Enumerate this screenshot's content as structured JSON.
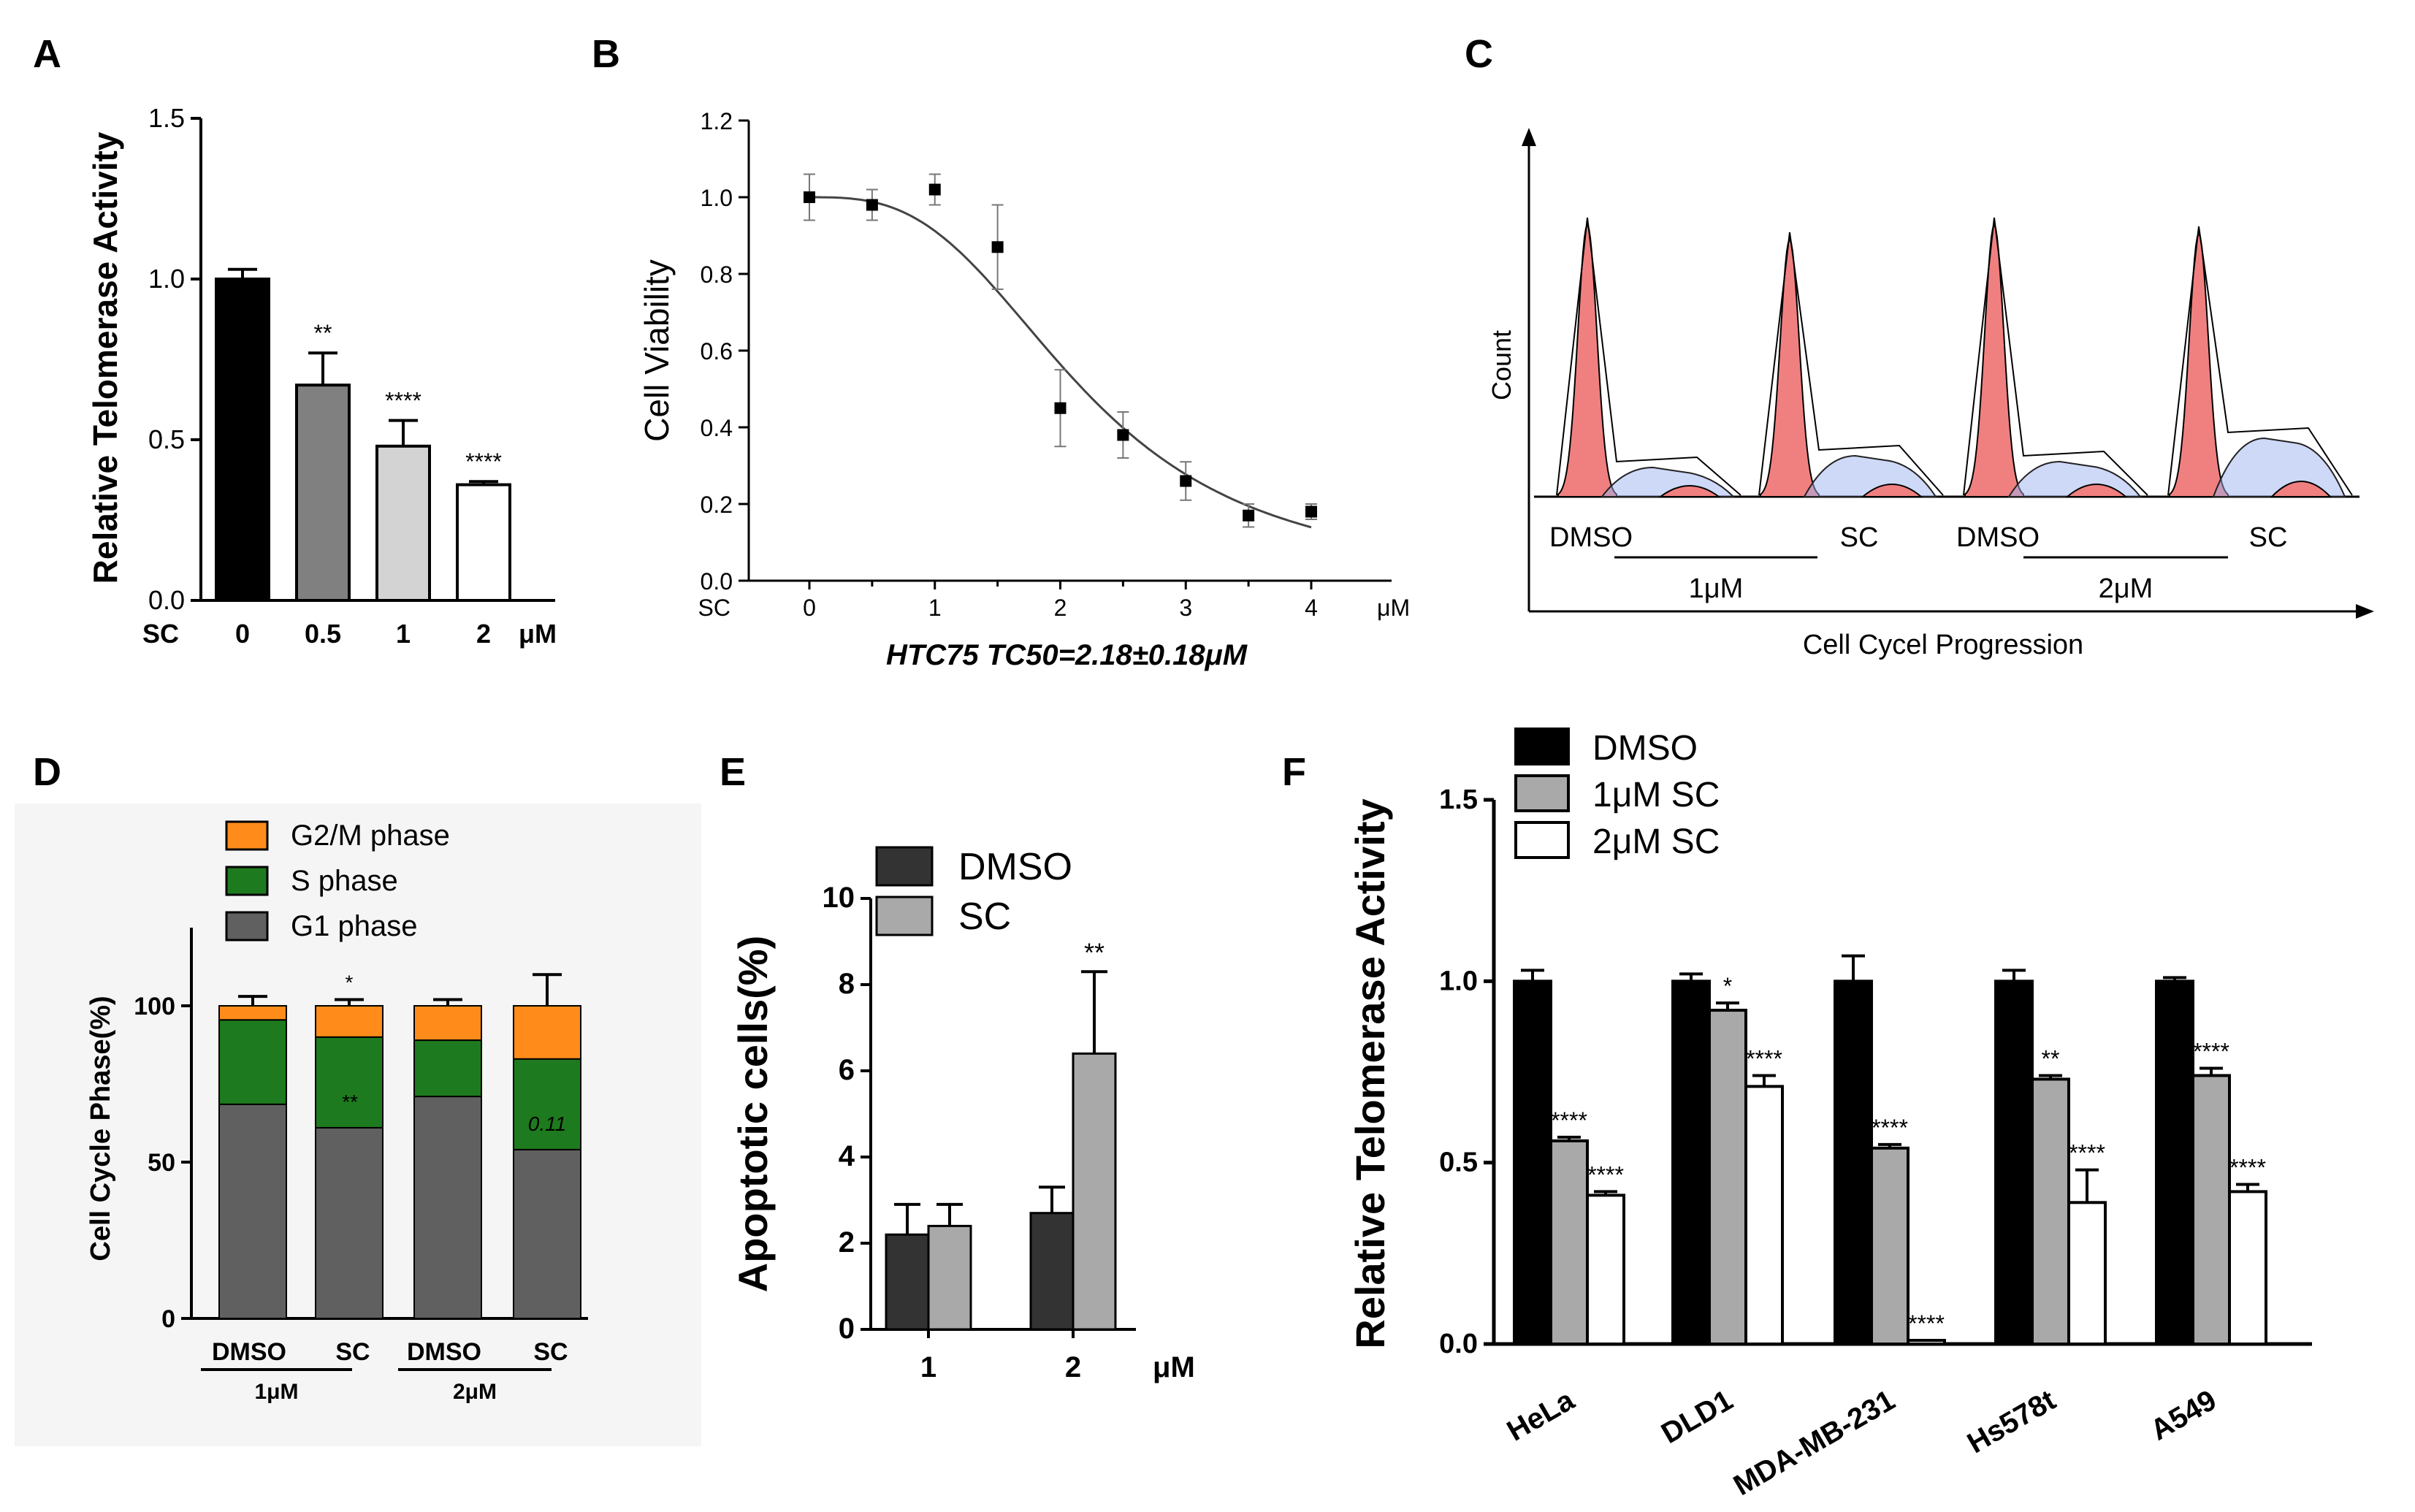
{
  "chart_data": [
    {
      "panel": "A",
      "type": "bar",
      "ylabel": "Relative Telomerase Activity",
      "xprefix": "SC",
      "xunit": "μM",
      "categories": [
        "0",
        "0.5",
        "1",
        "2"
      ],
      "values": [
        1.0,
        0.67,
        0.48,
        0.36
      ],
      "errors": [
        0.03,
        0.1,
        0.08,
        0.01
      ],
      "fills": [
        "#000000",
        "#808080",
        "#d3d3d3",
        "#ffffff"
      ],
      "significance": [
        "",
        "**",
        "****",
        "****"
      ],
      "ylim": [
        0,
        1.5
      ],
      "yticks": [
        "0.0",
        "0.5",
        "1.0",
        "1.5"
      ]
    },
    {
      "panel": "B",
      "type": "scatter",
      "ylabel": "Cell Viability",
      "xprefix": "SC",
      "xunit": "μM",
      "xlabel": "HTC75 TC50=2.18±0.18μM",
      "x": [
        0,
        0.5,
        1,
        1.5,
        2,
        2.5,
        3,
        3.5,
        4
      ],
      "y": [
        1.0,
        0.98,
        1.02,
        0.87,
        0.45,
        0.38,
        0.26,
        0.17,
        0.18
      ],
      "errors": [
        0.06,
        0.04,
        0.04,
        0.11,
        0.1,
        0.06,
        0.05,
        0.03,
        0.02
      ],
      "fit": {
        "top": 1.0,
        "bottom": 0.0,
        "ec50": 2.18,
        "hill": 3.0
      },
      "xlim": [
        0,
        4
      ],
      "ylim": [
        0,
        1.2
      ],
      "xticks": [
        "0",
        "1",
        "2",
        "3",
        "4"
      ],
      "yticks": [
        "0.0",
        "0.2",
        "0.4",
        "0.6",
        "0.8",
        "1.0",
        "1.2"
      ]
    },
    {
      "panel": "C",
      "type": "area",
      "ylabel": "Count",
      "xlabel": "Cell Cycel Progression",
      "histograms": [
        {
          "label": "DMSO",
          "g1_height": 0.93,
          "s_level": 0.1,
          "g2_height": 0.05
        },
        {
          "label": "SC",
          "g1_height": 0.88,
          "s_level": 0.14,
          "g2_height": 0.06
        },
        {
          "label": "DMSO",
          "g1_height": 0.93,
          "s_level": 0.12,
          "g2_height": 0.06
        },
        {
          "label": "SC",
          "g1_height": 0.9,
          "s_level": 0.2,
          "g2_height": 0.08
        }
      ],
      "groups": [
        "1μM",
        "2μM"
      ],
      "colors": {
        "g1": "#f08080",
        "s": "#9db2f0",
        "g2": "#f08080"
      }
    },
    {
      "panel": "D",
      "type": "bar",
      "stacked": true,
      "ylabel": "Cell Cycle Phase(%)",
      "categories": [
        "DMSO",
        "SC",
        "DMSO",
        "SC"
      ],
      "groups": [
        "1μM",
        "2μM"
      ],
      "series": [
        {
          "name": "G1 phase",
          "color": "#606060",
          "values": [
            68.5,
            61,
            71,
            54
          ],
          "errors": [
            2,
            1,
            4,
            6
          ]
        },
        {
          "name": "S phase",
          "color": "#1e7a1e",
          "values": [
            27,
            29,
            18,
            29
          ],
          "errors": [
            0,
            0,
            0,
            0
          ]
        },
        {
          "name": "G2/M phase",
          "color": "#ff8c1a",
          "values": [
            4.5,
            10,
            11,
            17
          ],
          "errors": [
            3,
            2,
            2,
            10
          ]
        }
      ],
      "annotations": [
        {
          "text": "*",
          "bar": 1,
          "at": "top"
        },
        {
          "text": "**",
          "bar": 1,
          "at": "s-phase"
        },
        {
          "text": "0.11",
          "bar": 3,
          "at": "s-phase"
        }
      ],
      "ylim": [
        0,
        125
      ],
      "yticks": [
        "0",
        "50",
        "100"
      ]
    },
    {
      "panel": "E",
      "type": "bar",
      "ylabel": "Apoptotic cells(%)",
      "xunit": "μM",
      "categories": [
        "1",
        "2"
      ],
      "series": [
        {
          "name": "DMSO",
          "color": "#333333",
          "values": [
            2.2,
            2.7
          ],
          "errors": [
            0.7,
            0.6
          ]
        },
        {
          "name": "SC",
          "color": "#a9a9a9",
          "values": [
            2.4,
            6.4
          ],
          "errors": [
            0.5,
            1.9
          ]
        }
      ],
      "significance": [
        {
          "text": "**",
          "category": 1,
          "series": 1
        }
      ],
      "ylim": [
        0,
        10
      ],
      "yticks": [
        "0",
        "2",
        "4",
        "6",
        "8",
        "10"
      ]
    },
    {
      "panel": "F",
      "type": "bar",
      "ylabel": "Relative Telomerase Activity",
      "categories": [
        "HeLa",
        "DLD1",
        "MDA-MB-231",
        "Hs578t",
        "A549"
      ],
      "series": [
        {
          "name": "DMSO",
          "color": "#000000",
          "values": [
            1.0,
            1.0,
            1.0,
            1.0,
            1.0
          ],
          "errors": [
            0.03,
            0.02,
            0.07,
            0.03,
            0.01
          ],
          "significance": [
            "",
            "",
            "",
            "",
            ""
          ]
        },
        {
          "name": "1μM SC",
          "color": "#a9a9a9",
          "values": [
            0.56,
            0.92,
            0.54,
            0.73,
            0.74
          ],
          "errors": [
            0.01,
            0.02,
            0.01,
            0.01,
            0.02
          ],
          "significance": [
            "****",
            "*",
            "****",
            "**",
            "****"
          ]
        },
        {
          "name": "2μM SC",
          "color": "#ffffff",
          "values": [
            0.41,
            0.71,
            0.01,
            0.39,
            0.42
          ],
          "errors": [
            0.01,
            0.03,
            0.0,
            0.09,
            0.02
          ],
          "significance": [
            "****",
            "****",
            "****",
            "****",
            "****"
          ]
        }
      ],
      "ylim": [
        0,
        1.5
      ],
      "yticks": [
        "0.0",
        "0.5",
        "1.0",
        "1.5"
      ]
    }
  ]
}
